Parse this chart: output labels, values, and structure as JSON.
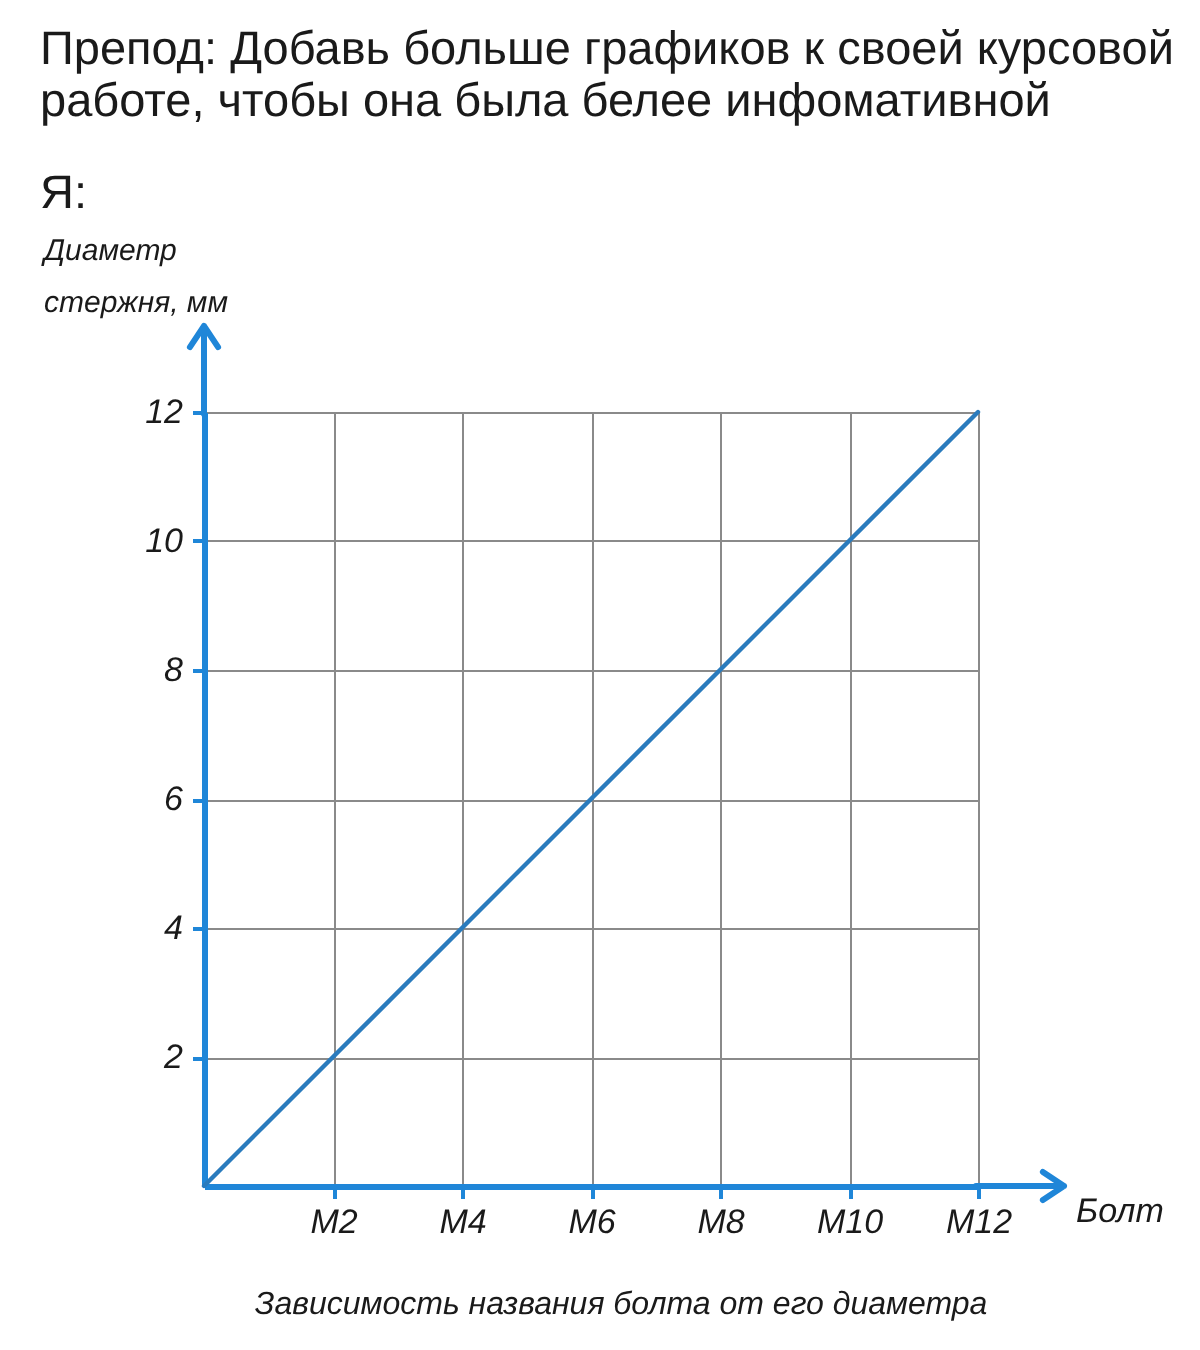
{
  "chart_data": {
    "type": "line",
    "title": "Препод: Добавь больше графиков к своей курсовой работе, чтобы она была белее инфомативной",
    "subtitle": "Я:",
    "xlabel": "Болт",
    "ylabel": "Диаметр стержня, мм",
    "annotations": [
      "Зависимость названия болта от его диаметра"
    ],
    "categories": [
      null,
      "M2",
      "M4",
      "M6",
      "M8",
      "M10",
      "M12"
    ],
    "series": [
      {
        "color": "#2a7bbd",
        "values": [
          0,
          2,
          4,
          6,
          8,
          10,
          12
        ]
      }
    ],
    "ylim": [
      0,
      12
    ],
    "yticks": [
      2,
      4,
      6,
      8,
      10,
      12
    ],
    "grid": true,
    "marker": "none",
    "line_style": "solid"
  }
}
